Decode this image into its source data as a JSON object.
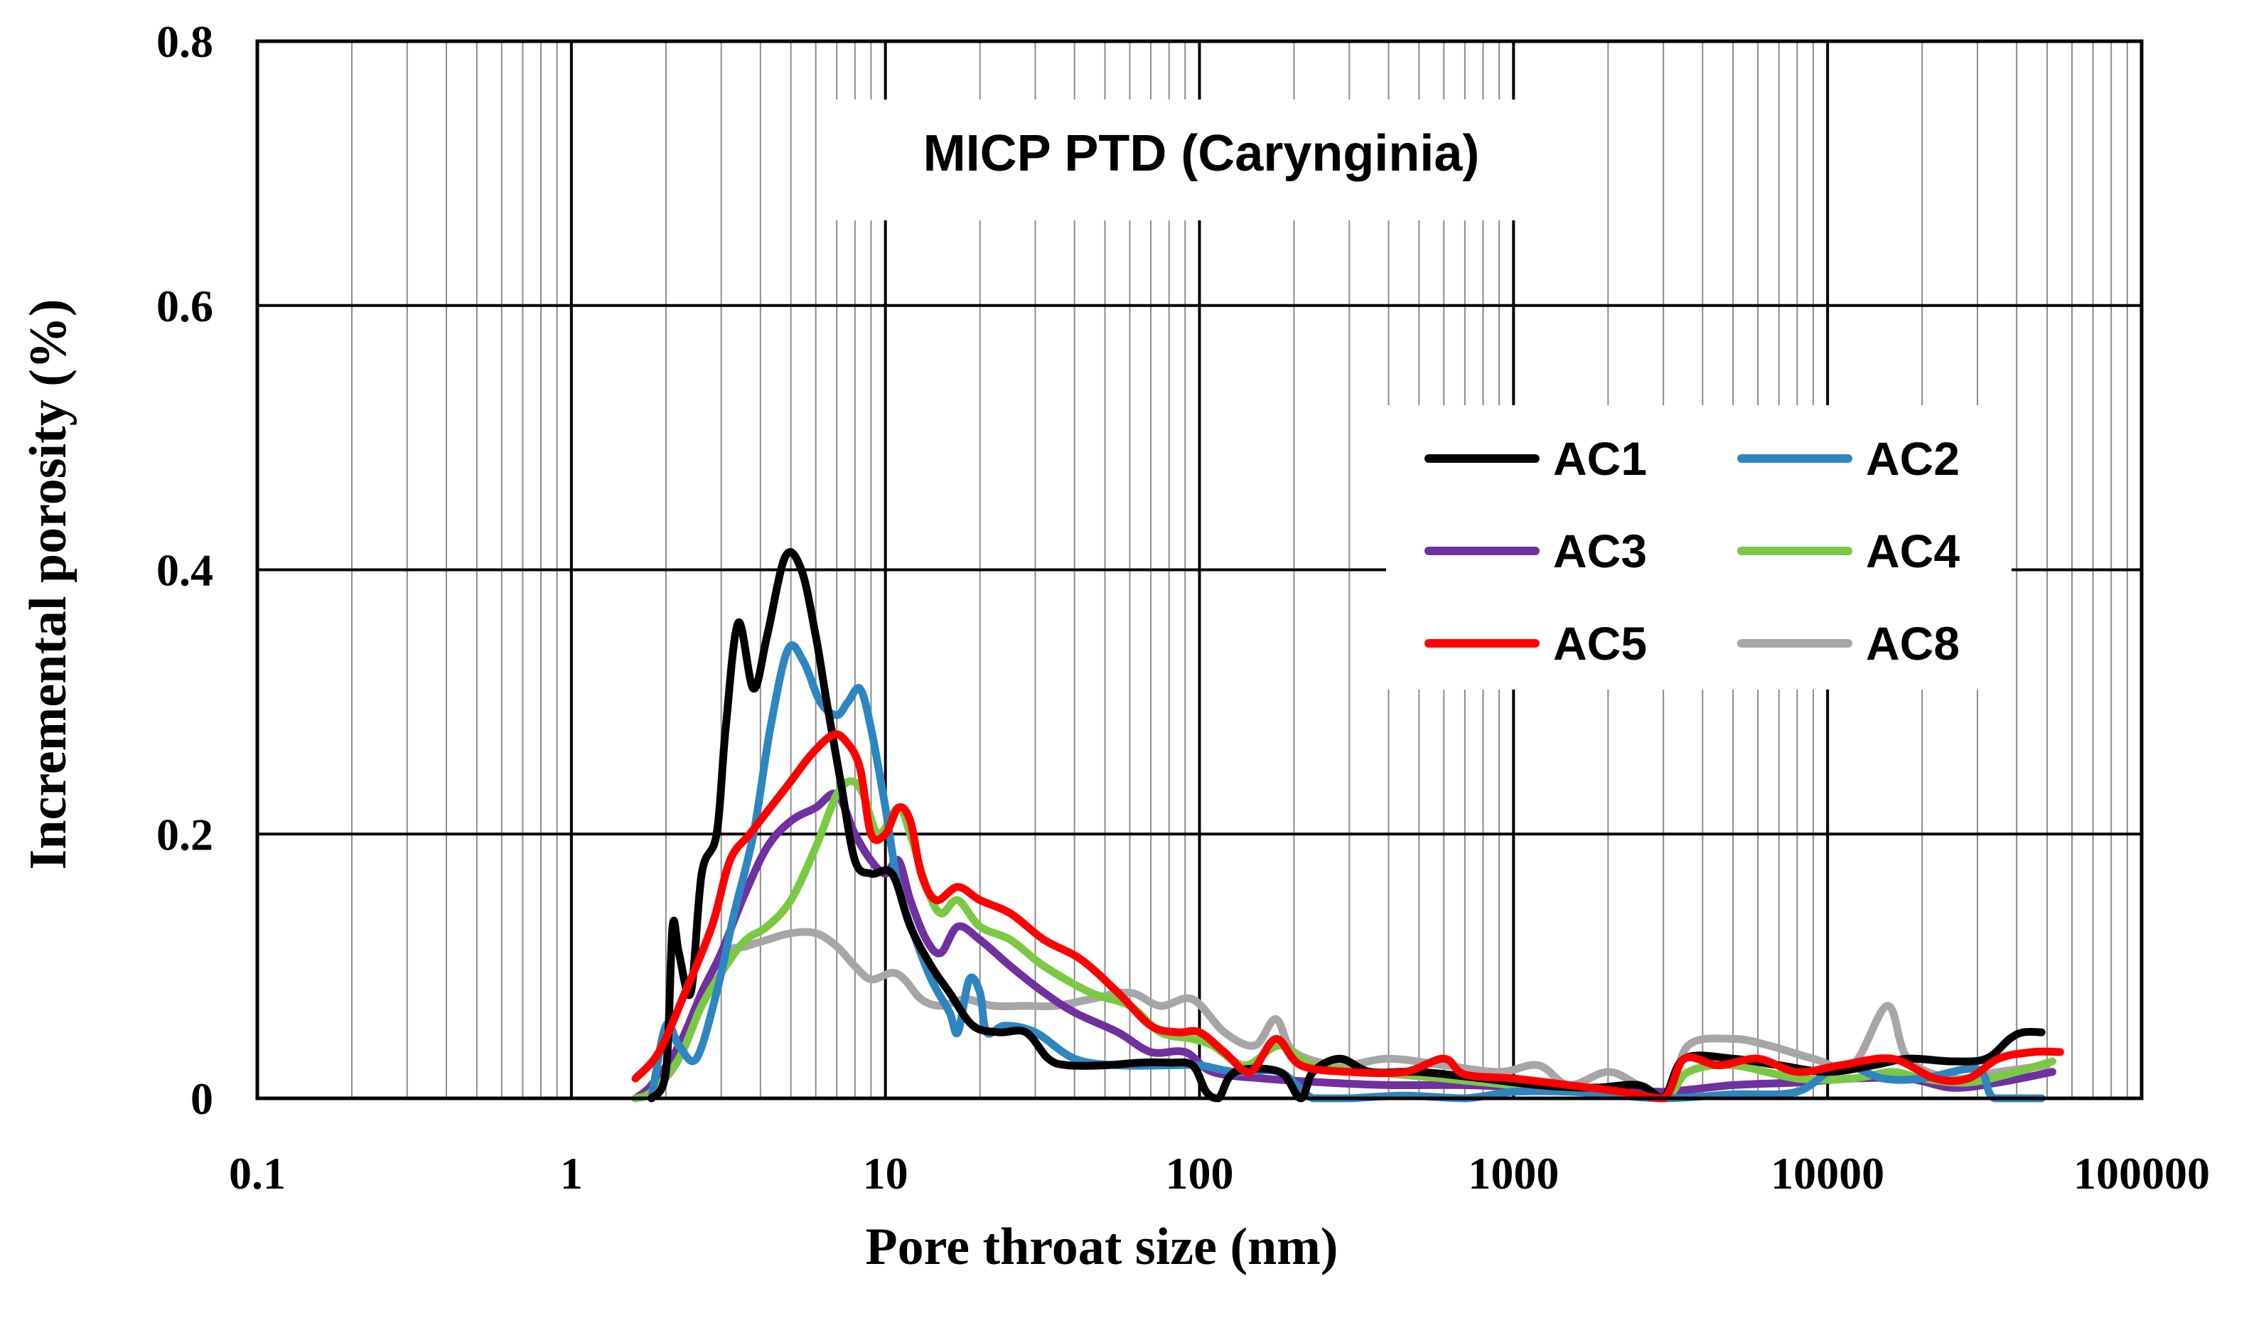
{
  "chart_data": {
    "type": "line",
    "title": "MICP PTD (Carynginia)",
    "xlabel": "Pore throat size (nm)",
    "ylabel": "Incremental porosity (%)",
    "xscale": "log",
    "xlim": [
      0.1,
      100000
    ],
    "ylim": [
      0,
      0.8
    ],
    "x_tick_labels": [
      "0.1",
      "1",
      "10",
      "100",
      "1000",
      "10000",
      "100000"
    ],
    "y_tick_labels": [
      "0",
      "0.2",
      "0.4",
      "0.6",
      "0.8"
    ],
    "grid": true,
    "legend_position": "right",
    "series": [
      {
        "name": "AC1",
        "color": "#000000",
        "points": [
          [
            1.8,
            0.0
          ],
          [
            2.0,
            0.02
          ],
          [
            2.1,
            0.13
          ],
          [
            2.2,
            0.11
          ],
          [
            2.4,
            0.08
          ],
          [
            2.6,
            0.17
          ],
          [
            2.9,
            0.2
          ],
          [
            3.1,
            0.28
          ],
          [
            3.4,
            0.36
          ],
          [
            3.8,
            0.31
          ],
          [
            4.2,
            0.35
          ],
          [
            4.8,
            0.41
          ],
          [
            5.4,
            0.4
          ],
          [
            6.0,
            0.35
          ],
          [
            6.5,
            0.3
          ],
          [
            7.2,
            0.24
          ],
          [
            8.0,
            0.18
          ],
          [
            9.0,
            0.17
          ],
          [
            10.5,
            0.17
          ],
          [
            12.0,
            0.13
          ],
          [
            14.0,
            0.1
          ],
          [
            16.0,
            0.08
          ],
          [
            19.0,
            0.055
          ],
          [
            23.0,
            0.05
          ],
          [
            28.0,
            0.05
          ],
          [
            33.0,
            0.03
          ],
          [
            38.0,
            0.025
          ],
          [
            50.0,
            0.025
          ],
          [
            65.0,
            0.027
          ],
          [
            80.0,
            0.027
          ],
          [
            95.0,
            0.025
          ],
          [
            105.0,
            0.005
          ],
          [
            115.0,
            0.0
          ],
          [
            130.0,
            0.02
          ],
          [
            180.0,
            0.02
          ],
          [
            210.0,
            0.0
          ],
          [
            230.0,
            0.02
          ],
          [
            280.0,
            0.03
          ],
          [
            350.0,
            0.02
          ],
          [
            500.0,
            0.02
          ],
          [
            800.0,
            0.015
          ],
          [
            1200.0,
            0.01
          ],
          [
            1800.0,
            0.008
          ],
          [
            2500.0,
            0.01
          ],
          [
            3000.0,
            0.0
          ],
          [
            3500.0,
            0.03
          ],
          [
            5000.0,
            0.03
          ],
          [
            7000.0,
            0.025
          ],
          [
            10000.0,
            0.02
          ],
          [
            14000.0,
            0.025
          ],
          [
            18000.0,
            0.03
          ],
          [
            25000.0,
            0.028
          ],
          [
            32000.0,
            0.03
          ],
          [
            38000.0,
            0.045
          ],
          [
            42000.0,
            0.05
          ],
          [
            48000.0,
            0.05
          ]
        ]
      },
      {
        "name": "AC2",
        "color": "#2e86c1",
        "points": [
          [
            1.8,
            0.0
          ],
          [
            2.0,
            0.055
          ],
          [
            2.2,
            0.04
          ],
          [
            2.5,
            0.03
          ],
          [
            2.9,
            0.08
          ],
          [
            3.3,
            0.14
          ],
          [
            3.8,
            0.2
          ],
          [
            4.3,
            0.28
          ],
          [
            4.9,
            0.34
          ],
          [
            5.5,
            0.33
          ],
          [
            6.2,
            0.3
          ],
          [
            7.0,
            0.29
          ],
          [
            7.6,
            0.3
          ],
          [
            8.3,
            0.31
          ],
          [
            9.0,
            0.28
          ],
          [
            10.0,
            0.22
          ],
          [
            11.0,
            0.16
          ],
          [
            12.5,
            0.12
          ],
          [
            14.0,
            0.09
          ],
          [
            16.0,
            0.065
          ],
          [
            17.0,
            0.05
          ],
          [
            18.5,
            0.09
          ],
          [
            20.0,
            0.08
          ],
          [
            21.0,
            0.05
          ],
          [
            24.0,
            0.055
          ],
          [
            30.0,
            0.05
          ],
          [
            40.0,
            0.03
          ],
          [
            55.0,
            0.025
          ],
          [
            80.0,
            0.025
          ],
          [
            100.0,
            0.025
          ],
          [
            130.0,
            0.02
          ],
          [
            180.0,
            0.02
          ],
          [
            230.0,
            0.0
          ],
          [
            300.0,
            0.0
          ],
          [
            450.0,
            0.002
          ],
          [
            700.0,
            0.0
          ],
          [
            1000.0,
            0.005
          ],
          [
            1500.0,
            0.005
          ],
          [
            2000.0,
            0.003
          ],
          [
            3000.0,
            0.0
          ],
          [
            5000.0,
            0.003
          ],
          [
            8000.0,
            0.005
          ],
          [
            11000.0,
            0.025
          ],
          [
            15000.0,
            0.015
          ],
          [
            20000.0,
            0.015
          ],
          [
            30000.0,
            0.022
          ],
          [
            34000.0,
            0.0
          ],
          [
            48000.0,
            0.0
          ]
        ]
      },
      {
        "name": "AC3",
        "color": "#7030a0",
        "points": [
          [
            1.6,
            0.0
          ],
          [
            1.8,
            0.01
          ],
          [
            2.2,
            0.04
          ],
          [
            2.6,
            0.08
          ],
          [
            3.0,
            0.11
          ],
          [
            3.5,
            0.15
          ],
          [
            4.2,
            0.19
          ],
          [
            5.0,
            0.21
          ],
          [
            6.0,
            0.22
          ],
          [
            7.0,
            0.23
          ],
          [
            8.0,
            0.2
          ],
          [
            9.0,
            0.18
          ],
          [
            10.0,
            0.17
          ],
          [
            11.0,
            0.18
          ],
          [
            12.0,
            0.15
          ],
          [
            13.5,
            0.12
          ],
          [
            15.0,
            0.11
          ],
          [
            17.0,
            0.13
          ],
          [
            20.0,
            0.12
          ],
          [
            25.0,
            0.1
          ],
          [
            32.0,
            0.08
          ],
          [
            40.0,
            0.065
          ],
          [
            55.0,
            0.05
          ],
          [
            70.0,
            0.035
          ],
          [
            90.0,
            0.035
          ],
          [
            110.0,
            0.02
          ],
          [
            160.0,
            0.015
          ],
          [
            250.0,
            0.012
          ],
          [
            400.0,
            0.01
          ],
          [
            700.0,
            0.01
          ],
          [
            1200.0,
            0.008
          ],
          [
            2000.0,
            0.008
          ],
          [
            3000.0,
            0.005
          ],
          [
            5000.0,
            0.01
          ],
          [
            8000.0,
            0.012
          ],
          [
            12000.0,
            0.015
          ],
          [
            18000.0,
            0.015
          ],
          [
            25000.0,
            0.008
          ],
          [
            35000.0,
            0.012
          ],
          [
            52000.0,
            0.02
          ]
        ]
      },
      {
        "name": "AC4",
        "color": "#7ac943",
        "points": [
          [
            1.6,
            0.0
          ],
          [
            1.8,
            0.005
          ],
          [
            2.2,
            0.03
          ],
          [
            2.6,
            0.07
          ],
          [
            3.1,
            0.1
          ],
          [
            3.6,
            0.12
          ],
          [
            4.2,
            0.13
          ],
          [
            5.0,
            0.15
          ],
          [
            6.0,
            0.19
          ],
          [
            7.0,
            0.23
          ],
          [
            7.8,
            0.24
          ],
          [
            8.5,
            0.23
          ],
          [
            9.5,
            0.2
          ],
          [
            11.0,
            0.22
          ],
          [
            12.0,
            0.2
          ],
          [
            13.5,
            0.16
          ],
          [
            15.0,
            0.14
          ],
          [
            17.0,
            0.15
          ],
          [
            20.0,
            0.13
          ],
          [
            25.0,
            0.12
          ],
          [
            32.0,
            0.1
          ],
          [
            45.0,
            0.08
          ],
          [
            60.0,
            0.07
          ],
          [
            75.0,
            0.05
          ],
          [
            95.0,
            0.045
          ],
          [
            110.0,
            0.04
          ],
          [
            140.0,
            0.025
          ],
          [
            180.0,
            0.04
          ],
          [
            230.0,
            0.025
          ],
          [
            350.0,
            0.02
          ],
          [
            600.0,
            0.015
          ],
          [
            1000.0,
            0.01
          ],
          [
            1500.0,
            0.008
          ],
          [
            2000.0,
            0.005
          ],
          [
            3000.0,
            0.0
          ],
          [
            3600.0,
            0.02
          ],
          [
            5000.0,
            0.025
          ],
          [
            8000.0,
            0.015
          ],
          [
            12000.0,
            0.015
          ],
          [
            16000.0,
            0.02
          ],
          [
            20000.0,
            0.015
          ],
          [
            28000.0,
            0.012
          ],
          [
            40000.0,
            0.02
          ],
          [
            52000.0,
            0.028
          ]
        ]
      },
      {
        "name": "AC5",
        "color": "#ff0000",
        "points": [
          [
            1.6,
            0.015
          ],
          [
            1.9,
            0.035
          ],
          [
            2.3,
            0.08
          ],
          [
            2.8,
            0.13
          ],
          [
            3.2,
            0.18
          ],
          [
            3.7,
            0.2
          ],
          [
            4.3,
            0.22
          ],
          [
            5.0,
            0.24
          ],
          [
            5.8,
            0.26
          ],
          [
            6.8,
            0.275
          ],
          [
            7.5,
            0.27
          ],
          [
            8.3,
            0.25
          ],
          [
            9.0,
            0.2
          ],
          [
            10.0,
            0.2
          ],
          [
            11.0,
            0.22
          ],
          [
            12.0,
            0.21
          ],
          [
            13.0,
            0.17
          ],
          [
            14.5,
            0.15
          ],
          [
            17.0,
            0.16
          ],
          [
            20.0,
            0.15
          ],
          [
            25.0,
            0.14
          ],
          [
            32.0,
            0.12
          ],
          [
            42.0,
            0.105
          ],
          [
            55.0,
            0.08
          ],
          [
            70.0,
            0.055
          ],
          [
            85.0,
            0.05
          ],
          [
            100.0,
            0.05
          ],
          [
            120.0,
            0.035
          ],
          [
            145.0,
            0.02
          ],
          [
            175.0,
            0.045
          ],
          [
            210.0,
            0.025
          ],
          [
            300.0,
            0.02
          ],
          [
            450.0,
            0.02
          ],
          [
            600.0,
            0.03
          ],
          [
            700.0,
            0.018
          ],
          [
            1000.0,
            0.015
          ],
          [
            1500.0,
            0.01
          ],
          [
            2200.0,
            0.005
          ],
          [
            3000.0,
            0.0
          ],
          [
            3500.0,
            0.03
          ],
          [
            4500.0,
            0.025
          ],
          [
            6000.0,
            0.03
          ],
          [
            8000.0,
            0.02
          ],
          [
            11000.0,
            0.025
          ],
          [
            16000.0,
            0.03
          ],
          [
            22000.0,
            0.015
          ],
          [
            28000.0,
            0.015
          ],
          [
            35000.0,
            0.03
          ],
          [
            45000.0,
            0.035
          ],
          [
            55000.0,
            0.035
          ]
        ]
      },
      {
        "name": "AC8",
        "color": "#a6a6a6",
        "points": [
          [
            1.6,
            0.0
          ],
          [
            1.8,
            0.005
          ],
          [
            2.2,
            0.03
          ],
          [
            2.6,
            0.08
          ],
          [
            3.1,
            0.11
          ],
          [
            3.6,
            0.115
          ],
          [
            4.2,
            0.12
          ],
          [
            5.0,
            0.125
          ],
          [
            6.0,
            0.125
          ],
          [
            7.0,
            0.115
          ],
          [
            8.0,
            0.1
          ],
          [
            9.0,
            0.09
          ],
          [
            10.5,
            0.095
          ],
          [
            11.5,
            0.09
          ],
          [
            13.0,
            0.075
          ],
          [
            15.0,
            0.07
          ],
          [
            18.0,
            0.075
          ],
          [
            22.0,
            0.07
          ],
          [
            28.0,
            0.07
          ],
          [
            35.0,
            0.07
          ],
          [
            45.0,
            0.075
          ],
          [
            60.0,
            0.08
          ],
          [
            75.0,
            0.07
          ],
          [
            95.0,
            0.075
          ],
          [
            120.0,
            0.05
          ],
          [
            150.0,
            0.04
          ],
          [
            175.0,
            0.06
          ],
          [
            200.0,
            0.035
          ],
          [
            280.0,
            0.025
          ],
          [
            400.0,
            0.03
          ],
          [
            600.0,
            0.025
          ],
          [
            900.0,
            0.02
          ],
          [
            1200.0,
            0.025
          ],
          [
            1500.0,
            0.01
          ],
          [
            2000.0,
            0.02
          ],
          [
            2500.0,
            0.01
          ],
          [
            3100.0,
            0.0
          ],
          [
            3600.0,
            0.04
          ],
          [
            5000.0,
            0.045
          ],
          [
            6500.0,
            0.04
          ],
          [
            9000.0,
            0.03
          ],
          [
            12000.0,
            0.025
          ],
          [
            15500.0,
            0.07
          ],
          [
            18000.0,
            0.03
          ],
          [
            25000.0,
            0.015
          ],
          [
            35000.0,
            0.02
          ],
          [
            50000.0,
            0.025
          ]
        ]
      }
    ]
  }
}
